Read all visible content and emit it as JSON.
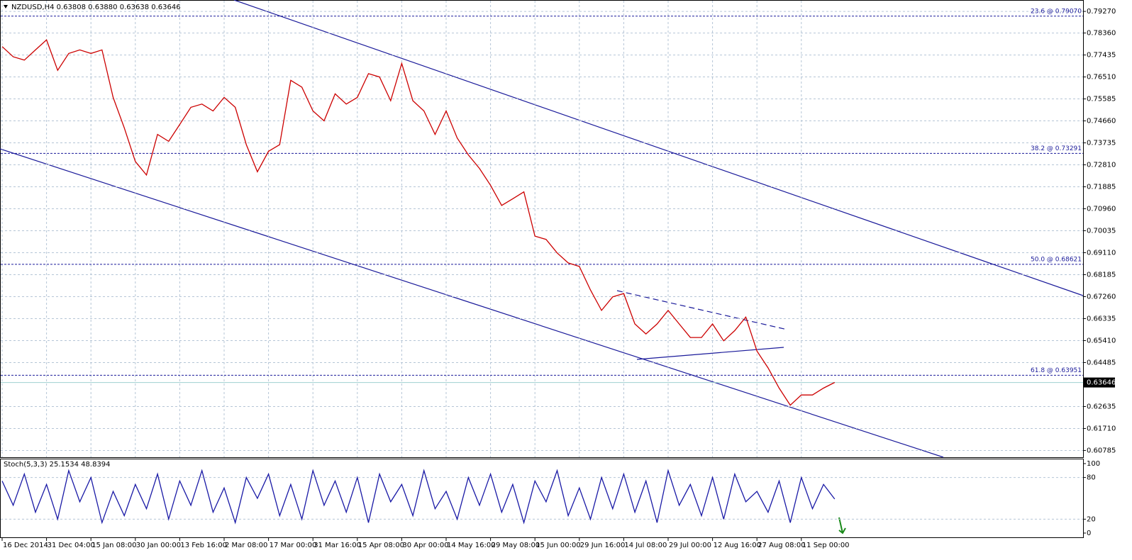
{
  "chart_data": [
    {
      "type": "line",
      "title": "NZDUSD,H4  0.63808 0.63880 0.63638 0.63646",
      "categories": [
        "16 Dec 2014",
        null,
        null,
        null,
        "31 Dec 04:00",
        null,
        null,
        null,
        "15 Jan 08:00",
        null,
        null,
        null,
        "30 Jan 00:00",
        null,
        null,
        null,
        "13 Feb 16:00",
        null,
        null,
        null,
        "2 Mar 08:00",
        null,
        null,
        null,
        "17 Mar 00:00",
        null,
        null,
        null,
        "31 Mar 16:00",
        null,
        null,
        null,
        "15 Apr 08:00",
        null,
        null,
        null,
        "30 Apr 00:00",
        null,
        null,
        null,
        "14 May 16:00",
        null,
        null,
        null,
        "29 May 08:00",
        null,
        null,
        null,
        "15 Jun 00:00",
        null,
        null,
        null,
        "29 Jun 16:00",
        null,
        null,
        null,
        "14 Jul 08:00",
        null,
        null,
        null,
        "29 Jul 00:00",
        null,
        null,
        null,
        "12 Aug 16:00",
        null,
        null,
        null,
        "27 Aug 08:00",
        null,
        null,
        null,
        "11 Sep 00:00",
        null,
        null,
        null
      ],
      "values": [
        0.7779,
        0.7736,
        0.7722,
        0.7765,
        0.7807,
        0.7679,
        0.775,
        0.7765,
        0.775,
        0.7765,
        0.7565,
        0.7437,
        0.7295,
        0.7238,
        0.7409,
        0.738,
        0.7451,
        0.7523,
        0.7537,
        0.7508,
        0.7565,
        0.7523,
        0.7366,
        0.7252,
        0.7338,
        0.7366,
        0.7637,
        0.7608,
        0.7508,
        0.7466,
        0.758,
        0.7537,
        0.7565,
        0.7665,
        0.7651,
        0.7551,
        0.7708,
        0.7551,
        0.7508,
        0.7409,
        0.7508,
        0.7394,
        0.7323,
        0.7266,
        0.7195,
        0.711,
        0.7138,
        0.7167,
        0.6981,
        0.6967,
        0.691,
        0.6868,
        0.6853,
        0.6754,
        0.6668,
        0.6725,
        0.6739,
        0.6611,
        0.6569,
        0.6611,
        0.6668,
        0.6611,
        0.6554,
        0.6554,
        0.6611,
        0.654,
        0.6583,
        0.664,
        0.6497,
        0.6426,
        0.6341,
        0.6269,
        0.6312,
        0.6312,
        0.6341,
        0.6365
      ],
      "color": "#cc0000",
      "ylim": [
        0.605,
        0.7975
      ],
      "yticks": [
        {
          "value": 0.7927,
          "label": "0.79270"
        },
        {
          "value": 0.7836,
          "label": "0.78360"
        },
        {
          "value": 0.77435,
          "label": "0.77435"
        },
        {
          "value": 0.7651,
          "label": "0.76510"
        },
        {
          "value": 0.75585,
          "label": "0.75585"
        },
        {
          "value": 0.7466,
          "label": "0.74660"
        },
        {
          "value": 0.73735,
          "label": "0.73735"
        },
        {
          "value": 0.7281,
          "label": "0.72810"
        },
        {
          "value": 0.71885,
          "label": "0.71885"
        },
        {
          "value": 0.7096,
          "label": "0.70960"
        },
        {
          "value": 0.70035,
          "label": "0.70035"
        },
        {
          "value": 0.6911,
          "label": "0.69110"
        },
        {
          "value": 0.68185,
          "label": "0.68185"
        },
        {
          "value": 0.6726,
          "label": "0.67260"
        },
        {
          "value": 0.66335,
          "label": "0.66335"
        },
        {
          "value": 0.6541,
          "label": "0.65410"
        },
        {
          "value": 0.64485,
          "label": "0.64485"
        },
        {
          "value": 0.62635,
          "label": "0.62635"
        },
        {
          "value": 0.6171,
          "label": "0.61710"
        },
        {
          "value": 0.60785,
          "label": "0.60785"
        }
      ],
      "levels": [
        {
          "value": 0.7907,
          "label": "23.6 @ 0.79070"
        },
        {
          "value": 0.73291,
          "label": "38.2 @ 0.73291"
        },
        {
          "value": 0.68621,
          "label": "50.0 @ 0.68621"
        },
        {
          "value": 0.63951,
          "label": "61.8 @ 0.63951"
        }
      ],
      "current_price": {
        "value": 0.63646,
        "label": "0.63646"
      },
      "grid": true
    },
    {
      "type": "line",
      "title": "Stoch(5,3,3) 25.1534 48.8394",
      "values": [
        75,
        40,
        85,
        30,
        70,
        20,
        90,
        45,
        80,
        15,
        60,
        25,
        70,
        35,
        85,
        20,
        75,
        40,
        90,
        30,
        65,
        15,
        80,
        50,
        85,
        25,
        70,
        20,
        90,
        40,
        75,
        30,
        80,
        15,
        85,
        45,
        70,
        25,
        90,
        35,
        60,
        20,
        80,
        40,
        85,
        30,
        70,
        15,
        75,
        45,
        90,
        25,
        65,
        20,
        80,
        35,
        85,
        30,
        75,
        15,
        90,
        40,
        70,
        25,
        80,
        20,
        85,
        45,
        60,
        30,
        75,
        15,
        80,
        35,
        70,
        49
      ],
      "color": "#1a1aa6",
      "ylim": [
        0,
        100
      ],
      "yticks": [
        100,
        80,
        20,
        0
      ]
    }
  ]
}
